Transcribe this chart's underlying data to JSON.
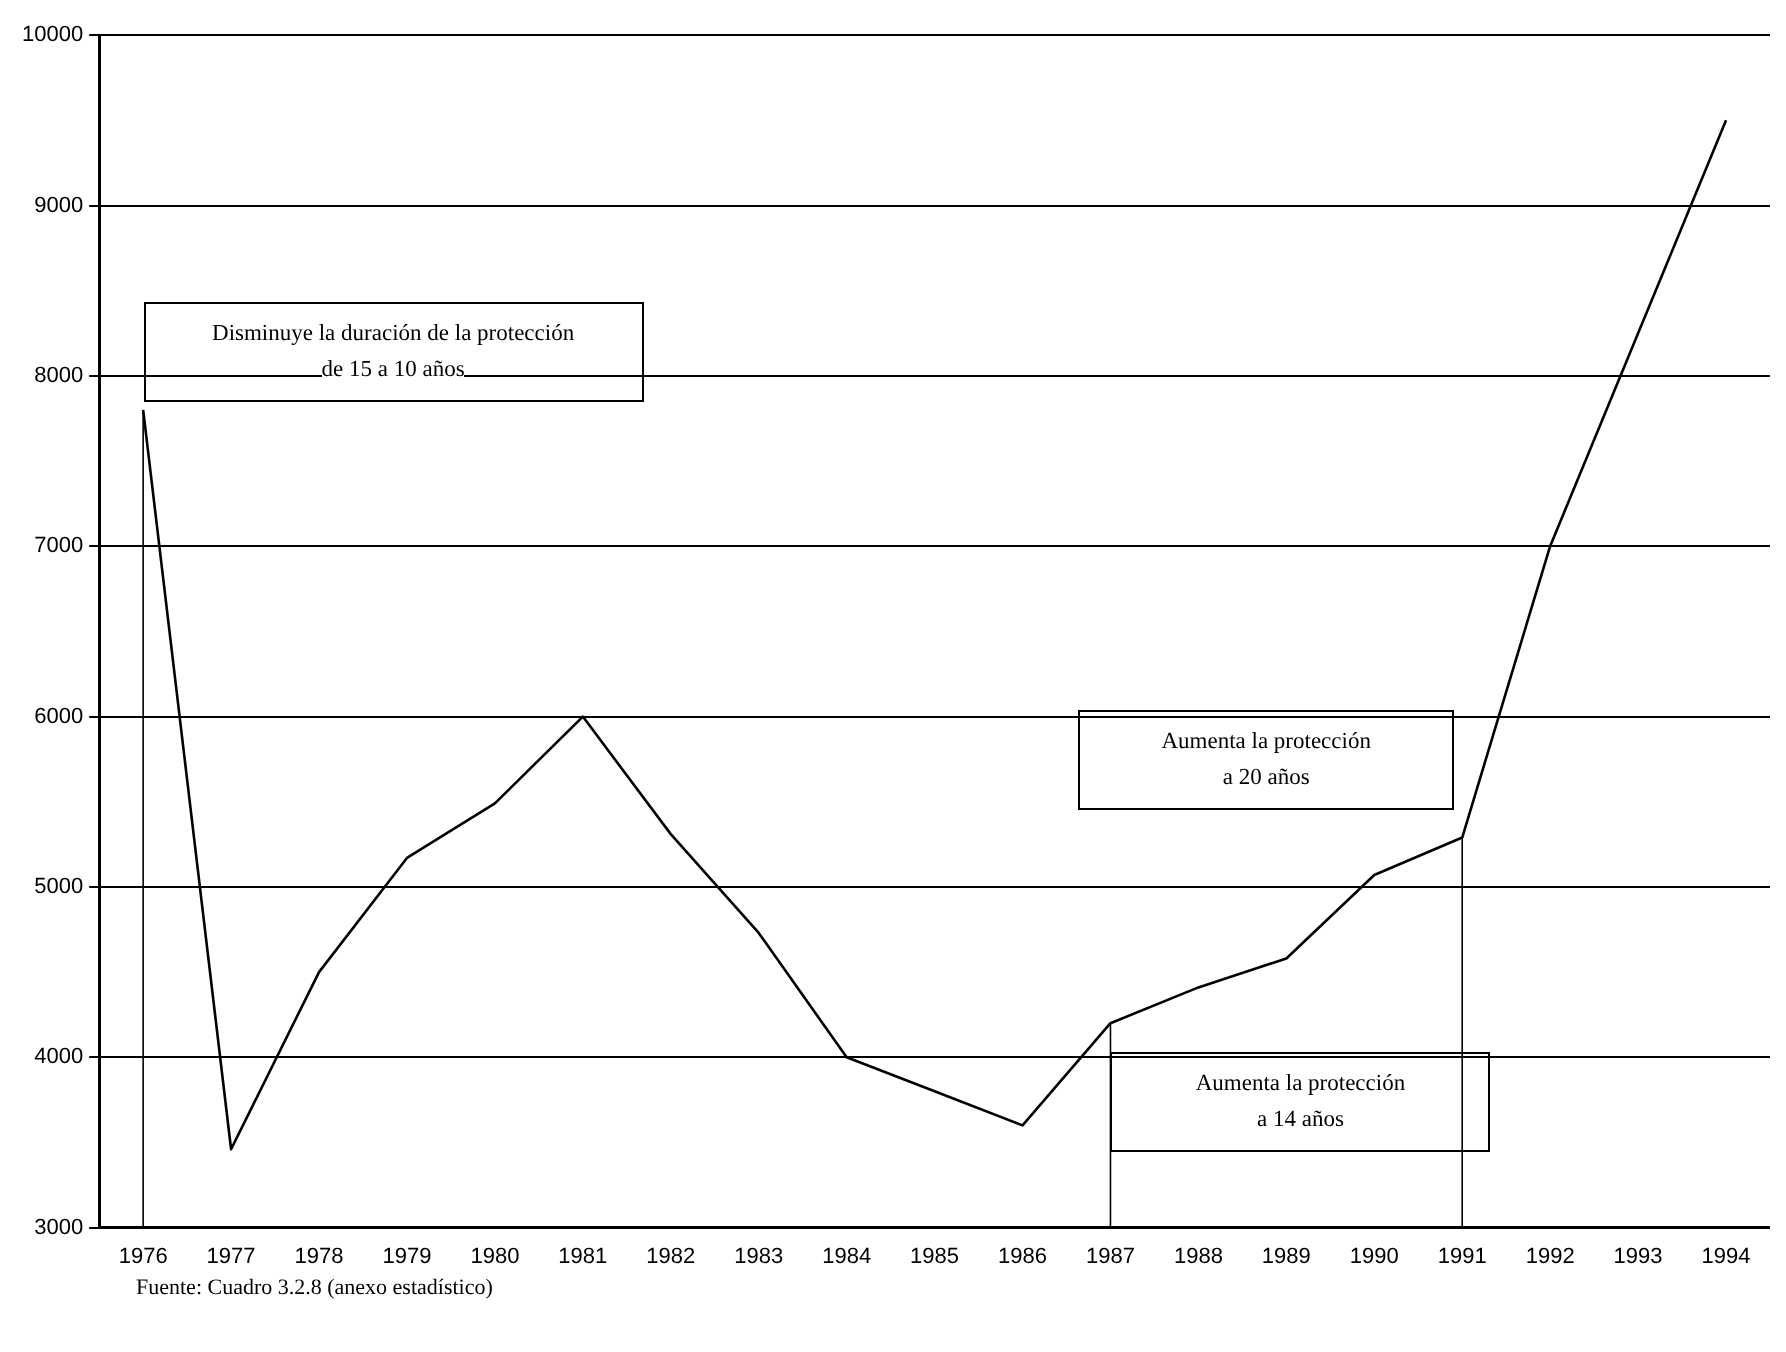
{
  "chart_data": {
    "type": "line",
    "categories": [
      "1976",
      "1977",
      "1978",
      "1979",
      "1980",
      "1981",
      "1982",
      "1983",
      "1984",
      "1985",
      "1986",
      "1987",
      "1988",
      "1989",
      "1990",
      "1991",
      "1992",
      "1993",
      "1994"
    ],
    "series": [
      {
        "color": "#000000",
        "values": [
          7800,
          3460,
          4500,
          5170,
          5490,
          6000,
          5310,
          4730,
          4000,
          3800,
          3600,
          4200,
          4410,
          4580,
          5070,
          5290,
          7000,
          8250,
          9500
        ]
      }
    ],
    "ylim": [
      3000,
      10000
    ],
    "yticks": [
      3000,
      4000,
      5000,
      6000,
      7000,
      8000,
      9000,
      10000
    ],
    "grid": "y",
    "legend": false,
    "marker": "none",
    "line_style": "solid",
    "ref_lines": [
      {
        "axis": "x",
        "value": "1976",
        "color": "#000000"
      },
      {
        "axis": "x",
        "value": "1987",
        "color": "#000000"
      },
      {
        "axis": "x",
        "value": "1991",
        "color": "#000000"
      }
    ],
    "annotations": [
      "Disminuye la duración de la protección\nde 15 a 10 años",
      "Aumenta la protección\na 14 años",
      "Aumenta la protección\na 20 años",
      "Fuente: Cuadro 3.2.8 (anexo estadístico)"
    ]
  }
}
